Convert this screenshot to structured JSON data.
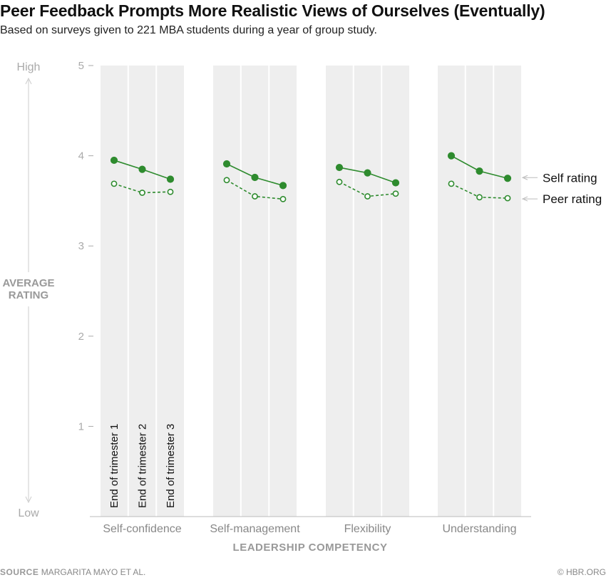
{
  "header": {
    "title": "Peer Feedback Prompts More Realistic Views of Ourselves (Eventually)",
    "subtitle": "Based on surveys given to 221 MBA students during a year of group study."
  },
  "footer": {
    "source_label": "SOURCE",
    "source_text": "MARGARITA MAYO ET AL.",
    "credit": "© HBR.ORG"
  },
  "colors": {
    "series": "#2e8b2e",
    "band": "#eeeeee",
    "axis_text": "#aaaaaa",
    "axis_title": "#999999"
  },
  "chart_data": {
    "type": "line",
    "title": "Peer Feedback Prompts More Realistic Views of Ourselves (Eventually)",
    "subtitle": "Based on surveys given to 221 MBA students during a year of group study.",
    "xlabel": "LEADERSHIP COMPETENCY",
    "ylabel_lines": [
      "AVERAGE",
      "RATING"
    ],
    "ylim": [
      0,
      5
    ],
    "yticks": [
      1,
      2,
      3,
      4,
      5
    ],
    "y_high_label": "High",
    "y_low_label": "Low",
    "categories": [
      "Self-confidence",
      "Self-management",
      "Flexibility",
      "Understanding"
    ],
    "subcategories": [
      "End of trimester 1",
      "End of trimester 2",
      "End of trimester 3"
    ],
    "series": [
      {
        "name": "Self rating",
        "style": "solid, filled markers",
        "values": [
          [
            3.95,
            3.85,
            3.74
          ],
          [
            3.91,
            3.76,
            3.67
          ],
          [
            3.87,
            3.81,
            3.7
          ],
          [
            4.0,
            3.83,
            3.75
          ]
        ]
      },
      {
        "name": "Peer rating",
        "style": "dashed, hollow markers",
        "values": [
          [
            3.69,
            3.59,
            3.6
          ],
          [
            3.73,
            3.55,
            3.52
          ],
          [
            3.71,
            3.55,
            3.58
          ],
          [
            3.69,
            3.54,
            3.53
          ]
        ]
      }
    ],
    "legend_placement": "right"
  }
}
